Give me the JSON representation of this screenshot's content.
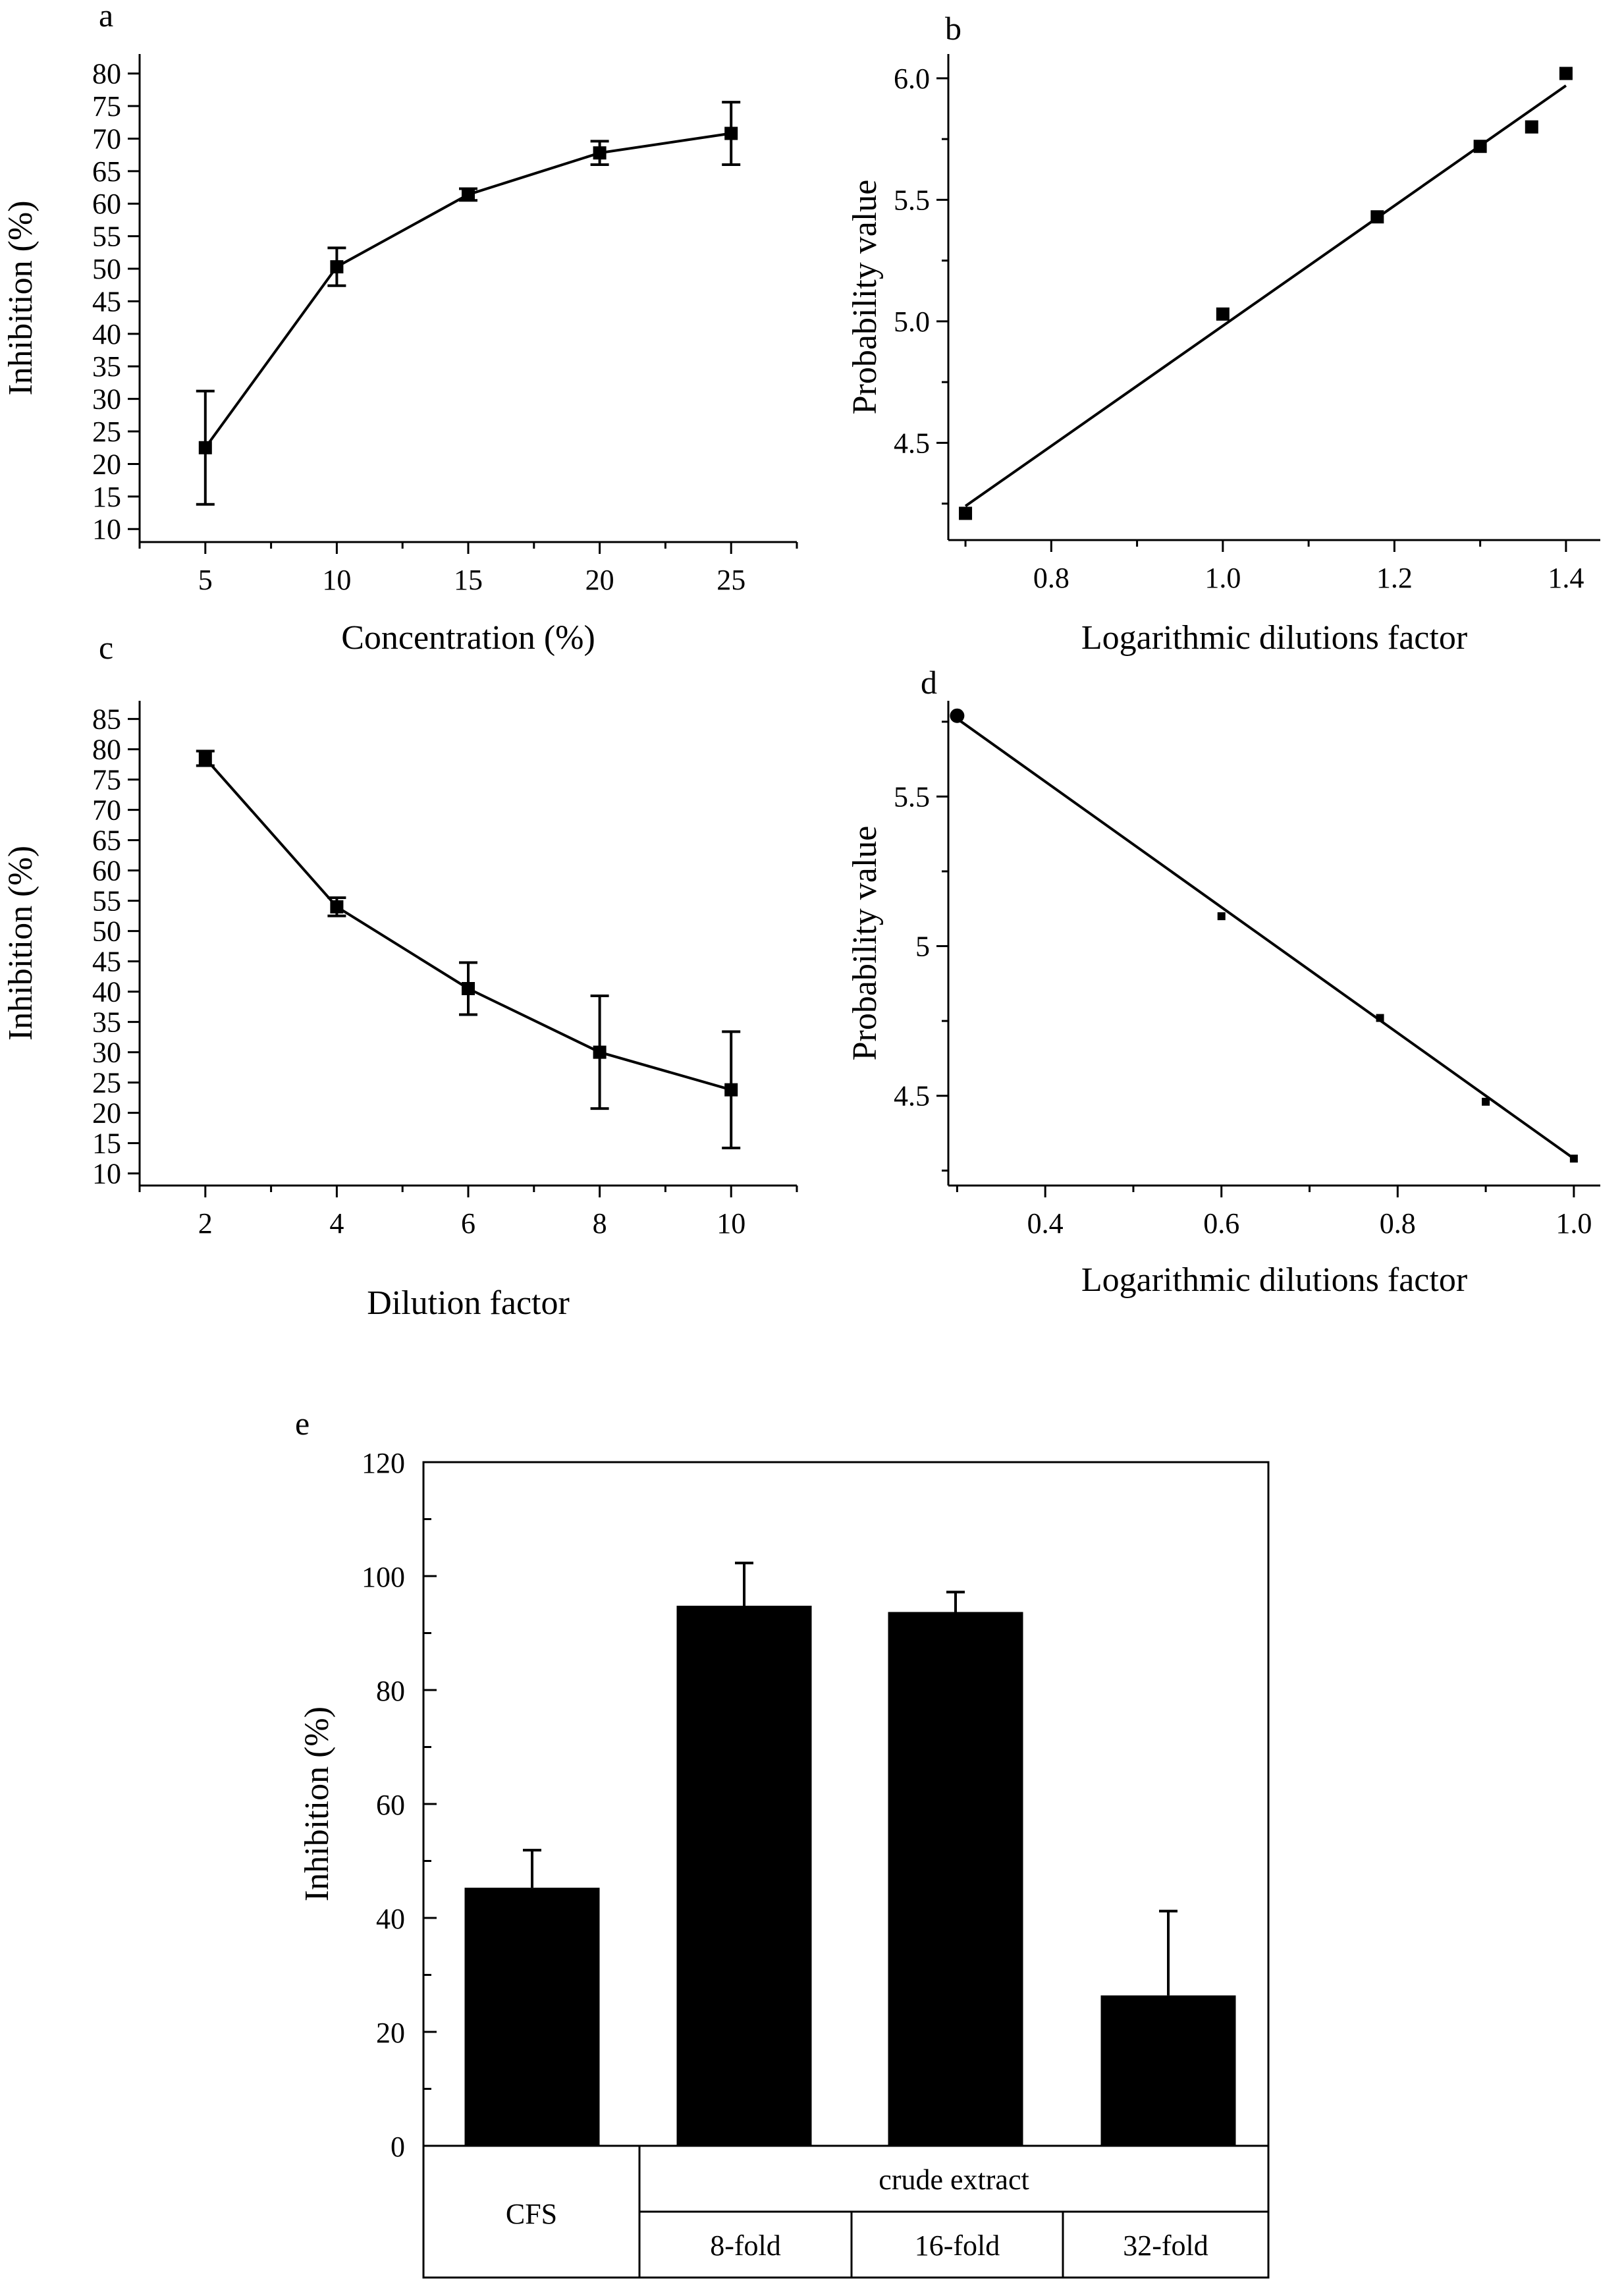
{
  "chart_data": [
    {
      "id": "a",
      "panel_label": "a",
      "type": "line",
      "xlabel": "Concentration (%)",
      "ylabel": "Inhibition (%)",
      "xlim": [
        2.5,
        27.5
      ],
      "ylim": [
        8,
        83
      ],
      "xticks": [
        5,
        10,
        15,
        20,
        25
      ],
      "yticks": [
        10,
        15,
        20,
        25,
        30,
        35,
        40,
        45,
        50,
        55,
        60,
        65,
        70,
        75,
        80
      ],
      "x": [
        5,
        10,
        15,
        20,
        25
      ],
      "y": [
        22.5,
        50.3,
        61.4,
        67.8,
        70.8
      ],
      "err": [
        8.7,
        2.9,
        0.9,
        1.8,
        4.8
      ],
      "marker": "square"
    },
    {
      "id": "b",
      "panel_label": "b",
      "type": "scatter",
      "xlabel": "Logarithmic dilutions factor",
      "ylabel": "Probability value",
      "xlim": [
        0.68,
        1.44
      ],
      "ylim": [
        4.1,
        6.1
      ],
      "xticks": [
        0.8,
        1.0,
        1.2,
        1.4
      ],
      "ytick_labels": [
        "4.5",
        "5.0",
        "5.5",
        "6.0"
      ],
      "yticks": [
        4.5,
        5.0,
        5.5,
        6.0
      ],
      "x": [
        0.7,
        1.0,
        1.18,
        1.3,
        1.36,
        1.4
      ],
      "y": [
        4.21,
        5.03,
        5.43,
        5.72,
        5.8,
        6.02
      ],
      "fit": {
        "x": [
          0.7,
          1.4
        ],
        "y": [
          4.24,
          5.97
        ]
      },
      "marker": "square"
    },
    {
      "id": "c",
      "panel_label": "c",
      "type": "line",
      "xlabel": "Dilution factor",
      "ylabel": "Inhibition (%)",
      "xlim": [
        1,
        11
      ],
      "ylim": [
        8,
        88
      ],
      "xticks": [
        2,
        4,
        6,
        8,
        10
      ],
      "yticks": [
        10,
        15,
        20,
        25,
        30,
        35,
        40,
        45,
        50,
        55,
        60,
        65,
        70,
        75,
        80,
        85
      ],
      "x": [
        2,
        4,
        6,
        8,
        10
      ],
      "y": [
        78.5,
        54.0,
        40.5,
        30.0,
        23.8
      ],
      "err": [
        1.2,
        1.5,
        4.3,
        9.3,
        9.6
      ],
      "marker": "square"
    },
    {
      "id": "d",
      "panel_label": "d",
      "type": "scatter",
      "xlabel": "Logarithmic dilutions factor",
      "ylabel": "Probability value",
      "xlim": [
        0.29,
        1.03
      ],
      "ylim": [
        4.2,
        5.82
      ],
      "xticks": [
        0.4,
        0.6,
        0.8,
        1.0
      ],
      "yticks": [
        4.5,
        5.0,
        5.5
      ],
      "x": [
        0.3,
        0.6,
        0.78,
        0.9,
        1.0
      ],
      "y": [
        5.77,
        5.1,
        4.76,
        4.48,
        4.29
      ],
      "fit": {
        "x": [
          0.3,
          1.0
        ],
        "y": [
          5.76,
          4.29
        ]
      },
      "marker": "square"
    },
    {
      "id": "e",
      "panel_label": "e",
      "type": "bar",
      "ylabel": "Inhibition (%)",
      "ylim": [
        0,
        120
      ],
      "yticks": [
        0,
        20,
        40,
        60,
        80,
        100,
        120
      ],
      "categories": [
        "CFS",
        "8-fold",
        "16-fold",
        "32-fold"
      ],
      "values": [
        45.3,
        94.8,
        93.7,
        26.4
      ],
      "err": [
        6.6,
        7.5,
        3.5,
        14.8
      ],
      "group_label": "crude extract"
    }
  ]
}
